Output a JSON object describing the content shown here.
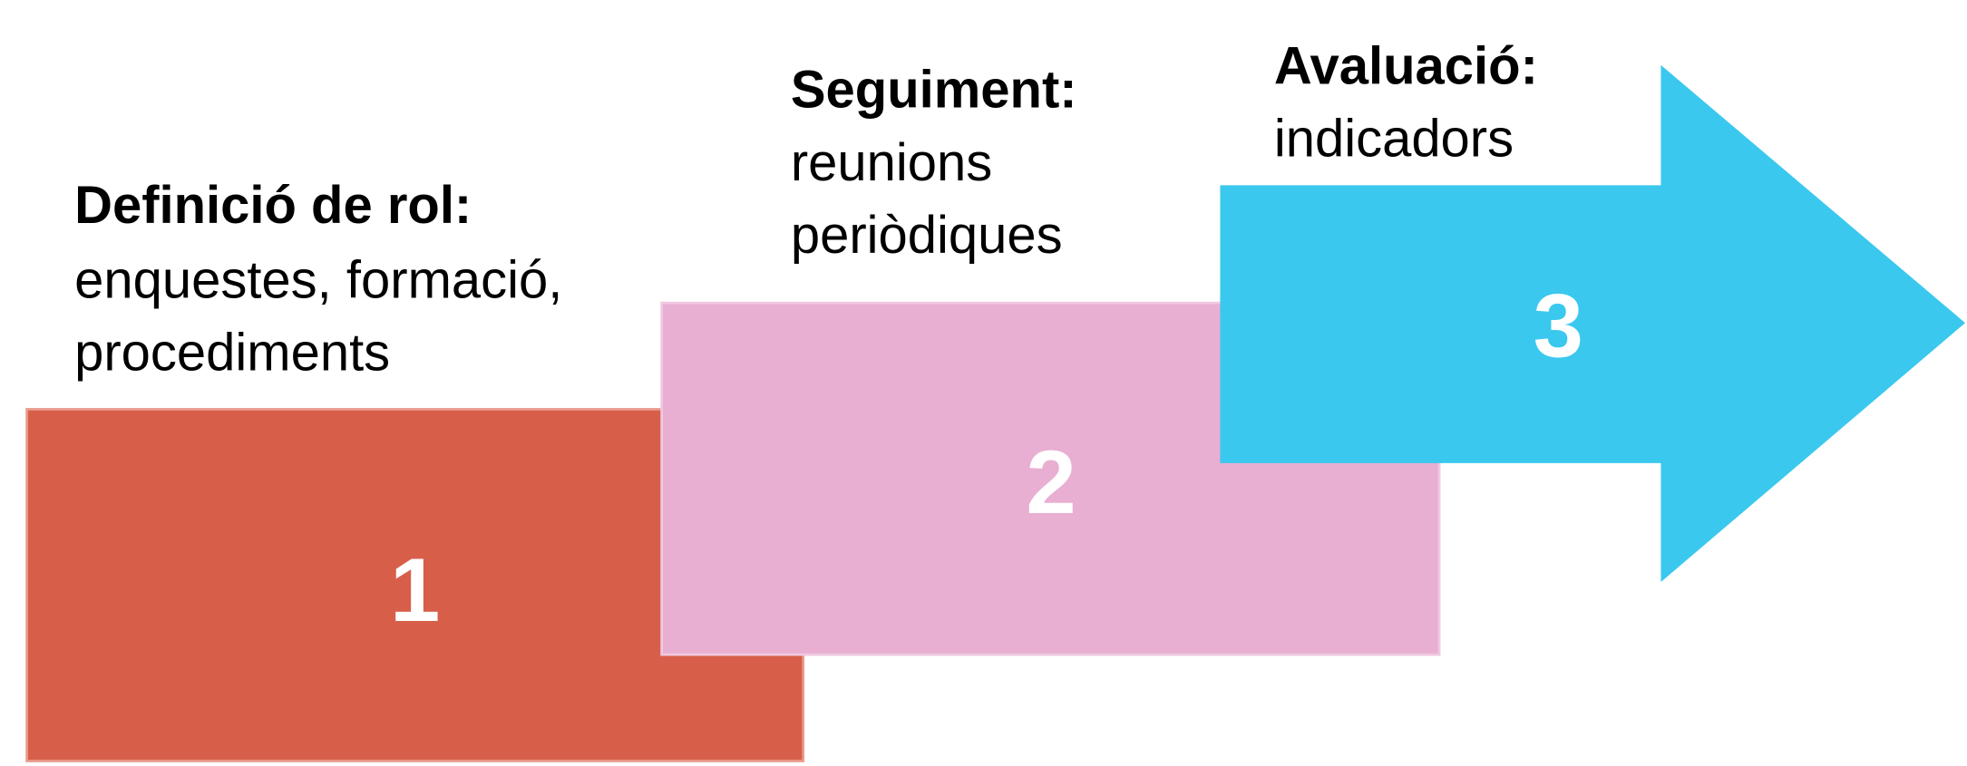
{
  "steps": [
    {
      "number": 1,
      "title": "Definició de rol:",
      "description": [
        "enquestes, formació,",
        "procediments"
      ]
    },
    {
      "number": 2,
      "title": "Seguiment:",
      "description": [
        "reunions",
        "periòdiques"
      ]
    },
    {
      "number": 3,
      "title": "Avaluació:",
      "description": [
        "indicadors"
      ]
    }
  ]
}
